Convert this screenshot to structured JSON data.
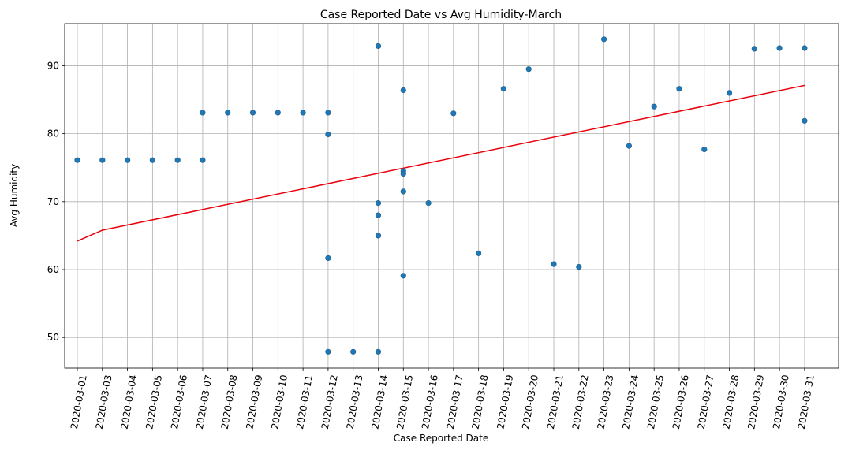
{
  "chart_data": {
    "type": "scatter",
    "title": "Case Reported Date vs Avg Humidity-March",
    "xlabel": "Case Reported Date",
    "ylabel": "Avg Humidity",
    "categories": [
      "2020-03-01",
      "2020-03-03",
      "2020-03-04",
      "2020-03-05",
      "2020-03-06",
      "2020-03-07",
      "2020-03-08",
      "2020-03-09",
      "2020-03-10",
      "2020-03-11",
      "2020-03-12",
      "2020-03-13",
      "2020-03-14",
      "2020-03-15",
      "2020-03-16",
      "2020-03-17",
      "2020-03-18",
      "2020-03-19",
      "2020-03-20",
      "2020-03-21",
      "2020-03-22",
      "2020-03-23",
      "2020-03-24",
      "2020-03-25",
      "2020-03-26",
      "2020-03-27",
      "2020-03-28",
      "2020-03-29",
      "2020-03-30",
      "2020-03-31"
    ],
    "y_ticks": [
      50,
      60,
      70,
      80,
      90
    ],
    "ylim": [
      45.5,
      96.2
    ],
    "grid": true,
    "points": [
      {
        "x": "2020-03-01",
        "y": 76.1
      },
      {
        "x": "2020-03-03",
        "y": 76.1
      },
      {
        "x": "2020-03-04",
        "y": 76.1
      },
      {
        "x": "2020-03-05",
        "y": 76.1
      },
      {
        "x": "2020-03-06",
        "y": 76.1
      },
      {
        "x": "2020-03-07",
        "y": 76.1
      },
      {
        "x": "2020-03-07",
        "y": 83.1
      },
      {
        "x": "2020-03-08",
        "y": 83.1
      },
      {
        "x": "2020-03-09",
        "y": 83.1
      },
      {
        "x": "2020-03-10",
        "y": 83.1
      },
      {
        "x": "2020-03-11",
        "y": 83.1
      },
      {
        "x": "2020-03-12",
        "y": 83.1
      },
      {
        "x": "2020-03-12",
        "y": 79.9
      },
      {
        "x": "2020-03-12",
        "y": 61.7
      },
      {
        "x": "2020-03-12",
        "y": 47.9
      },
      {
        "x": "2020-03-13",
        "y": 47.9
      },
      {
        "x": "2020-03-14",
        "y": 92.9
      },
      {
        "x": "2020-03-14",
        "y": 69.8
      },
      {
        "x": "2020-03-14",
        "y": 68.0
      },
      {
        "x": "2020-03-14",
        "y": 65.0
      },
      {
        "x": "2020-03-14",
        "y": 47.9
      },
      {
        "x": "2020-03-15",
        "y": 86.4
      },
      {
        "x": "2020-03-15",
        "y": 74.5
      },
      {
        "x": "2020-03-15",
        "y": 74.1
      },
      {
        "x": "2020-03-15",
        "y": 71.5
      },
      {
        "x": "2020-03-15",
        "y": 59.1
      },
      {
        "x": "2020-03-16",
        "y": 69.8
      },
      {
        "x": "2020-03-17",
        "y": 83.0
      },
      {
        "x": "2020-03-18",
        "y": 62.4
      },
      {
        "x": "2020-03-19",
        "y": 86.6
      },
      {
        "x": "2020-03-20",
        "y": 89.5
      },
      {
        "x": "2020-03-21",
        "y": 60.8
      },
      {
        "x": "2020-03-22",
        "y": 60.4
      },
      {
        "x": "2020-03-23",
        "y": 93.9
      },
      {
        "x": "2020-03-24",
        "y": 78.2
      },
      {
        "x": "2020-03-25",
        "y": 84.0
      },
      {
        "x": "2020-03-26",
        "y": 86.6
      },
      {
        "x": "2020-03-27",
        "y": 77.7
      },
      {
        "x": "2020-03-28",
        "y": 86.0
      },
      {
        "x": "2020-03-29",
        "y": 92.5
      },
      {
        "x": "2020-03-30",
        "y": 92.6
      },
      {
        "x": "2020-03-31",
        "y": 92.6
      },
      {
        "x": "2020-03-31",
        "y": 81.9
      }
    ],
    "trend_line": [
      {
        "x": "2020-03-01",
        "y": 64.2
      },
      {
        "x": "2020-03-03",
        "y": 65.8
      },
      {
        "x": "2020-03-31",
        "y": 87.1
      }
    ],
    "colors": {
      "points": "#1f77b4",
      "trend": "#e8000b",
      "grid": "#b0b0b0"
    }
  }
}
